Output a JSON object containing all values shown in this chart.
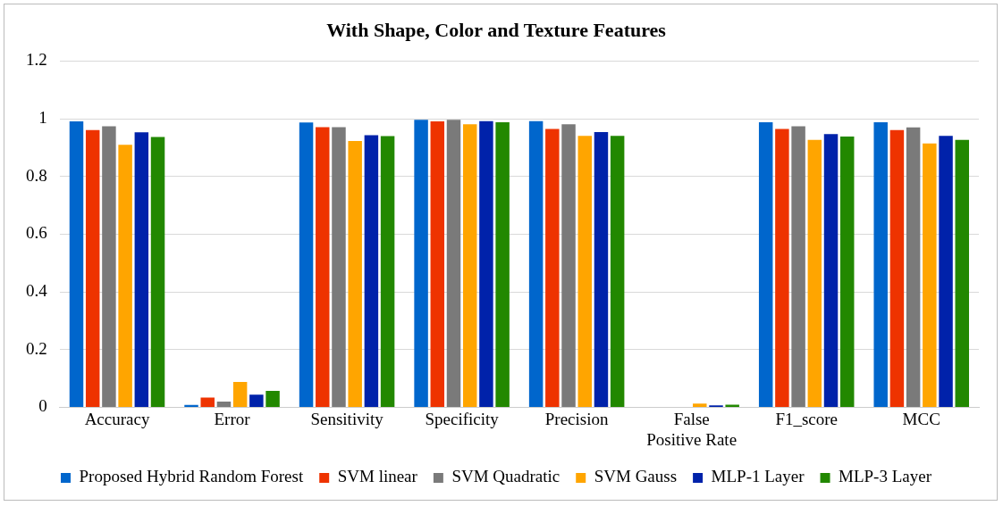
{
  "chart_data": {
    "type": "bar",
    "title": "With Shape, Color and Texture Features",
    "categories": [
      "Accuracy",
      "Error",
      "Sensitivity",
      "Specificity",
      "Precision",
      "False Positive Rate",
      "F1_score",
      "MCC"
    ],
    "series": [
      {
        "name": "Proposed Hybrid Random Forest",
        "color": "#0066cc",
        "values": [
          0.991,
          0.008,
          0.987,
          0.996,
          0.992,
          null,
          0.988,
          0.988
        ]
      },
      {
        "name": "SVM linear",
        "color": "#ee3300",
        "values": [
          0.961,
          0.034,
          0.971,
          0.991,
          0.965,
          null,
          0.965,
          0.961
        ]
      },
      {
        "name": "SVM Quadratic",
        "color": "#7a7a7a",
        "values": [
          0.974,
          0.02,
          0.971,
          0.996,
          0.981,
          null,
          0.974,
          0.97
        ]
      },
      {
        "name": "SVM Gauss",
        "color": "#ffa500",
        "values": [
          0.91,
          0.088,
          0.923,
          0.981,
          0.941,
          0.013,
          0.927,
          0.914
        ]
      },
      {
        "name": "MLP-1 Layer",
        "color": "#0022aa",
        "values": [
          0.953,
          0.044,
          0.943,
          0.992,
          0.954,
          0.007,
          0.947,
          0.941
        ]
      },
      {
        "name": "MLP-3 Layer",
        "color": "#228800",
        "values": [
          0.937,
          0.057,
          0.94,
          0.988,
          0.941,
          0.009,
          0.938,
          0.927
        ]
      }
    ],
    "ylim": [
      0,
      1.2
    ],
    "yticks": [
      0,
      0.2,
      0.4,
      0.6,
      0.8,
      1,
      1.2
    ],
    "grid": "y",
    "legend": "bottom"
  }
}
